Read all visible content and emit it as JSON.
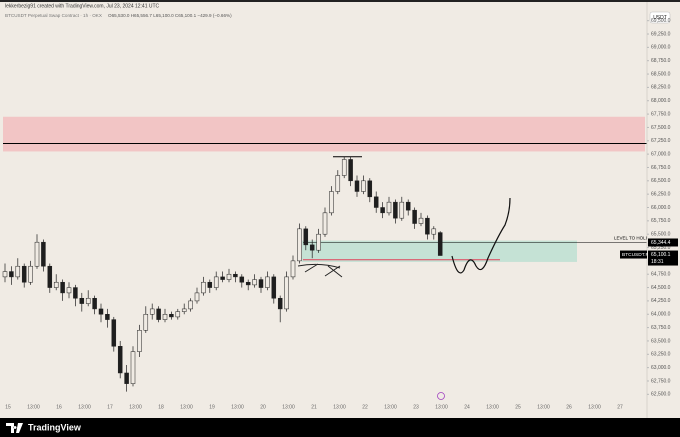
{
  "header": {
    "author_line": "lekkerbezig91 created with TradingView.com, Jul 23, 2024 12:41 UTC",
    "symbol_line": "BTCUSDT Perpetual Swap Contract · 1h · OKX",
    "ohlc_line": "O65,530.0 H65,556.7 L65,100.0 C65,100.1 −429.9 (−0.66%)",
    "currency": "USDT"
  },
  "footer": {
    "brand": "TradingView"
  },
  "chart_data": {
    "type": "candlestick",
    "color": "#1e1e1e",
    "grid": false,
    "ylim": [
      62300,
      69700
    ],
    "yticks": [
      {
        "value": 62500,
        "label": "62,500.0"
      },
      {
        "value": 62750,
        "label": "62,750.0"
      },
      {
        "value": 63000,
        "label": "63,000.0"
      },
      {
        "value": 63250,
        "label": "63,250.0"
      },
      {
        "value": 63500,
        "label": "63,500.0"
      },
      {
        "value": 63750,
        "label": "63,750.0"
      },
      {
        "value": 64000,
        "label": "64,000.0"
      },
      {
        "value": 64250,
        "label": "64,250.0"
      },
      {
        "value": 64500,
        "label": "64,500.0"
      },
      {
        "value": 64750,
        "label": "64,750.0"
      },
      {
        "value": 65250,
        "label": "65,250.0"
      },
      {
        "value": 65500,
        "label": "65,500.0"
      },
      {
        "value": 65750,
        "label": "65,750.0"
      },
      {
        "value": 66000,
        "label": "66,000.0"
      },
      {
        "value": 66250,
        "label": "66,250.0"
      },
      {
        "value": 66500,
        "label": "66,500.0"
      },
      {
        "value": 66750,
        "label": "66,750.0"
      },
      {
        "value": 67000,
        "label": "67,000.0"
      },
      {
        "value": 67250,
        "label": "67,250.0"
      },
      {
        "value": 67500,
        "label": "67,500.0"
      },
      {
        "value": 67750,
        "label": "67,750.0"
      },
      {
        "value": 68000,
        "label": "68,000.0"
      },
      {
        "value": 68250,
        "label": "68,250.0"
      },
      {
        "value": 68500,
        "label": "68,500.0"
      },
      {
        "value": 68750,
        "label": "68,750.0"
      },
      {
        "value": 69000,
        "label": "69,000.0"
      },
      {
        "value": 69250,
        "label": "69,250.0"
      },
      {
        "value": 69500,
        "label": "69,500.0"
      }
    ],
    "x_labels": [
      "15",
      "13:00",
      "16",
      "13:00",
      "17",
      "13:00",
      "18",
      "13:00",
      "19",
      "13:00",
      "20",
      "13:00",
      "21",
      "13:00",
      "22",
      "13:00",
      "23",
      "13:00",
      "24",
      "13:00",
      "25",
      "13:00",
      "26",
      "13:00",
      "27"
    ],
    "candles": [
      [
        64700,
        64950,
        64600,
        64800
      ],
      [
        64800,
        64900,
        64550,
        64700
      ],
      [
        64700,
        65050,
        64650,
        64900
      ],
      [
        64900,
        64950,
        64500,
        64600
      ],
      [
        64600,
        65000,
        64550,
        64900
      ],
      [
        64900,
        65500,
        64850,
        65350
      ],
      [
        65350,
        65400,
        64800,
        64900
      ],
      [
        64900,
        64950,
        64400,
        64500
      ],
      [
        64500,
        64750,
        64450,
        64600
      ],
      [
        64600,
        64650,
        64250,
        64400
      ],
      [
        64400,
        64600,
        64300,
        64500
      ],
      [
        64500,
        64550,
        64150,
        64300
      ],
      [
        64300,
        64400,
        64050,
        64200
      ],
      [
        64200,
        64450,
        64150,
        64300
      ],
      [
        64300,
        64350,
        64000,
        64100
      ],
      [
        64100,
        64200,
        63850,
        64000
      ],
      [
        64000,
        64100,
        63750,
        63900
      ],
      [
        63900,
        63950,
        63300,
        63400
      ],
      [
        63400,
        63500,
        62800,
        62900
      ],
      [
        62900,
        63050,
        62550,
        62700
      ],
      [
        62700,
        63400,
        62650,
        63300
      ],
      [
        63300,
        63800,
        63200,
        63700
      ],
      [
        63700,
        64150,
        63650,
        64000
      ],
      [
        64000,
        64200,
        63900,
        64100
      ],
      [
        64100,
        64150,
        63850,
        63900
      ],
      [
        63900,
        64100,
        63850,
        64000
      ],
      [
        64000,
        64050,
        63900,
        63950
      ],
      [
        63950,
        64100,
        63900,
        64050
      ],
      [
        64050,
        64200,
        64000,
        64100
      ],
      [
        64100,
        64300,
        64050,
        64250
      ],
      [
        64250,
        64500,
        64200,
        64400
      ],
      [
        64400,
        64700,
        64350,
        64600
      ],
      [
        64600,
        64650,
        64400,
        64500
      ],
      [
        64500,
        64800,
        64450,
        64700
      ],
      [
        64700,
        64800,
        64600,
        64650
      ],
      [
        64650,
        64850,
        64600,
        64750
      ],
      [
        64750,
        64800,
        64600,
        64700
      ],
      [
        64700,
        64750,
        64500,
        64600
      ],
      [
        64600,
        64650,
        64450,
        64550
      ],
      [
        64550,
        64750,
        64500,
        64650
      ],
      [
        64650,
        64700,
        64400,
        64500
      ],
      [
        64500,
        64800,
        64450,
        64700
      ],
      [
        64700,
        64750,
        64200,
        64300
      ],
      [
        64300,
        64350,
        63850,
        64100
      ],
      [
        64100,
        64800,
        64050,
        64700
      ],
      [
        64700,
        65100,
        64650,
        65000
      ],
      [
        65000,
        65700,
        64950,
        65600
      ],
      [
        65600,
        65650,
        65200,
        65300
      ],
      [
        65300,
        65400,
        65050,
        65200
      ],
      [
        65200,
        65600,
        65150,
        65500
      ],
      [
        65500,
        66000,
        65450,
        65900
      ],
      [
        65900,
        66400,
        65850,
        66300
      ],
      [
        66300,
        66700,
        66250,
        66600
      ],
      [
        66600,
        66950,
        66550,
        66900
      ],
      [
        66900,
        66950,
        66400,
        66500
      ],
      [
        66500,
        66600,
        66200,
        66300
      ],
      [
        66300,
        66600,
        66250,
        66500
      ],
      [
        66500,
        66550,
        66100,
        66200
      ],
      [
        66200,
        66300,
        65900,
        66000
      ],
      [
        66000,
        66100,
        65800,
        65900
      ],
      [
        65900,
        66200,
        65850,
        66100
      ],
      [
        66100,
        66150,
        65700,
        65800
      ],
      [
        65800,
        66200,
        65750,
        66100
      ],
      [
        66100,
        66150,
        65850,
        65950
      ],
      [
        65950,
        66000,
        65600,
        65700
      ],
      [
        65700,
        65900,
        65650,
        65800
      ],
      [
        65800,
        65850,
        65400,
        65500
      ],
      [
        65500,
        65650,
        65400,
        65600
      ],
      [
        65530,
        65556.7,
        65100,
        65100.1
      ]
    ],
    "zones": [
      {
        "from": 67050,
        "to": 67700,
        "color": "#f2c5c5"
      },
      {
        "from": 64980,
        "to": 65380,
        "color": "#c5e2d5"
      }
    ],
    "lines": [
      {
        "value": 67200,
        "color": "#000000"
      },
      {
        "value": 65020,
        "color": "#e0435a"
      },
      {
        "value": 66950,
        "color": "#000000"
      }
    ],
    "level_to_hold": {
      "text": "LEVEL TO HOLD",
      "value": 65344.4,
      "label": "65,344.4"
    },
    "last_price": {
      "value": 65100.1,
      "label": "65,100.1",
      "symbol": "BTCUSDT.P",
      "countdown": "18:31"
    }
  }
}
